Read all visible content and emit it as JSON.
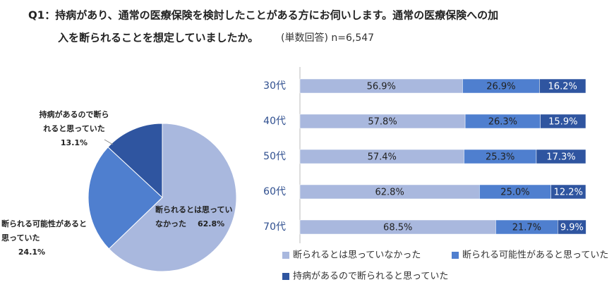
{
  "title": [
    "Q1：持病があり、通常の医療保険を検討したことがある方にお伺いします。通常の医療保険への加",
    "入を断られることを想定していましたか。"
  ],
  "subtitle": "(単数回答) n=6,547",
  "chart_data": [
    {
      "type": "pie",
      "categories": [
        "断られるとは思っていなかった",
        "断られる可能性があると思っていた",
        "持病があるので断られると思っていた"
      ],
      "values": [
        62.8,
        24.1,
        13.1
      ],
      "value_labels": [
        "62.8%",
        "24.1%",
        "13.1%"
      ],
      "label_lines": [
        [
          "断られるとは思ってい",
          "なかった"
        ],
        [
          "断られる可能性があると",
          "思っていた"
        ],
        [
          "持病があるので断ら",
          "れると思っていた"
        ]
      ],
      "colors": [
        "#a9b8de",
        "#4f7fcf",
        "#2f55a0"
      ]
    },
    {
      "type": "stacked-bar",
      "categories": [
        "30代",
        "40代",
        "50代",
        "60代",
        "70代"
      ],
      "xlim": [
        0,
        100
      ],
      "legend": "bottom",
      "series": [
        {
          "name": "断られるとは思っていなかった",
          "color": "#a9b8de",
          "values": [
            56.9,
            57.8,
            57.4,
            62.8,
            68.5
          ],
          "value_labels": [
            "56.9%",
            "57.8%",
            "57.4%",
            "62.8%",
            "68.5%"
          ]
        },
        {
          "name": "断られる可能性があると思っていた",
          "color": "#4f7fcf",
          "values": [
            26.9,
            26.3,
            25.3,
            25.0,
            21.7
          ],
          "value_labels": [
            "26.9%",
            "26.3%",
            "25.3%",
            "25.0%",
            "21.7%"
          ]
        },
        {
          "name": "持病があるので断られると思っていた",
          "color": "#2f55a0",
          "values": [
            16.2,
            15.9,
            17.3,
            12.2,
            9.9
          ],
          "value_labels": [
            "16.2%",
            "15.9%",
            "17.3%",
            "12.2%",
            "9.9%"
          ]
        }
      ]
    }
  ]
}
